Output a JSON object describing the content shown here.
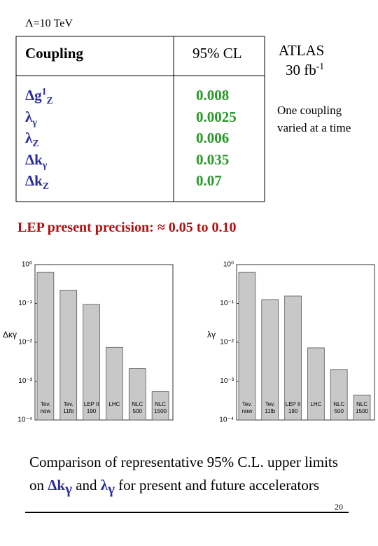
{
  "header": {
    "title": "Λ=10 TeV"
  },
  "table": {
    "columns": [
      "Coupling",
      "95% CL"
    ],
    "rows": [
      {
        "coupling": {
          "base": "Δg",
          "sup": "1",
          "sub": "Z"
        },
        "limit": "0.008"
      },
      {
        "coupling": {
          "base": "λ",
          "sub": "γ"
        },
        "limit": "0.0025"
      },
      {
        "coupling": {
          "base": "λ",
          "sub": "Z"
        },
        "limit": "0.006"
      },
      {
        "coupling": {
          "base": "Δk",
          "sub": "γ"
        },
        "limit": "0.035"
      },
      {
        "coupling": {
          "base": "Δk",
          "sub": "Z"
        },
        "limit": "0.07"
      }
    ]
  },
  "side": {
    "experiment": "ATLAS",
    "luminosity": "30 fb",
    "luminosity_sup": "-1",
    "note": "One coupling varied at a time"
  },
  "lep_note": "LEP present precision: ≈ 0.05 to 0.10",
  "chart_data": [
    {
      "type": "bar",
      "ylabel": "Δκγ",
      "log": true,
      "color": "#c8c8c8",
      "categories": [
        "Tev.\nnow",
        "Tev.\n11fb",
        "LEP II\n190",
        "LHC",
        "NLC\n500",
        "NLC\n1500"
      ],
      "values": [
        0.63,
        0.22,
        0.095,
        0.0074,
        0.0021,
        0.00054
      ],
      "ylim": [
        0.0001,
        1
      ],
      "yticks": [
        {
          "value": 0.0001,
          "label": "10⁻⁴"
        },
        {
          "value": 0.001,
          "label": "10⁻³"
        },
        {
          "value": 0.01,
          "label": "10⁻²"
        },
        {
          "value": 0.1,
          "label": "10⁻¹"
        },
        {
          "value": 1,
          "label": "10⁰"
        }
      ]
    },
    {
      "type": "bar",
      "ylabel": "λγ",
      "log": true,
      "color": "#c8c8c8",
      "categories": [
        "Tev.\nnow",
        "Tev.\n11fb",
        "LEP II\n190",
        "LHC",
        "NLC\n500",
        "NLC\n1500"
      ],
      "values": [
        0.63,
        0.126,
        0.155,
        0.0072,
        0.002,
        0.00044
      ],
      "ylim": [
        0.0001,
        1
      ],
      "yticks": [
        {
          "value": 0.0001,
          "label": "10⁻⁴"
        },
        {
          "value": 0.001,
          "label": "10⁻³"
        },
        {
          "value": 0.01,
          "label": "10⁻²"
        },
        {
          "value": 0.1,
          "label": "10⁻¹"
        },
        {
          "value": 1,
          "label": "10⁰"
        }
      ]
    }
  ],
  "caption": {
    "parts": [
      "Comparison of representative 95% C.L. upper limits on ",
      "Δk",
      "γ",
      " and ",
      "λ",
      "γ",
      "  for present and future accelerators"
    ]
  },
  "page_number": "20"
}
